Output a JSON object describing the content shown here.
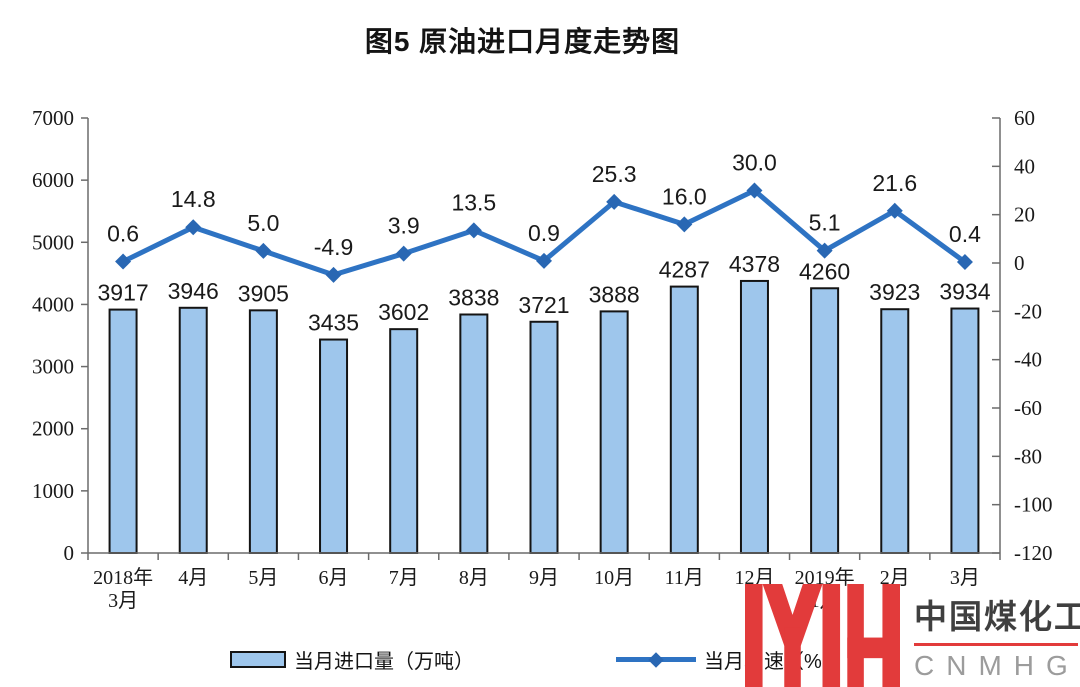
{
  "chart_data": {
    "type": "bar+line-combo",
    "title": "图5 原油进口月度走势图",
    "categories": [
      {
        "line1": "2018年",
        "line2": "3月"
      },
      {
        "line1": "4月"
      },
      {
        "line1": "5月"
      },
      {
        "line1": "6月"
      },
      {
        "line1": "7月"
      },
      {
        "line1": "8月"
      },
      {
        "line1": "9月"
      },
      {
        "line1": "10月"
      },
      {
        "line1": "11月"
      },
      {
        "line1": "12月"
      },
      {
        "line1": "2019年",
        "line2": "1月"
      },
      {
        "line1": "2月"
      },
      {
        "line1": "3月"
      }
    ],
    "series": [
      {
        "name": "当月进口量（万吨）",
        "type": "bar",
        "axis": "left",
        "values": [
          3917,
          3946,
          3905,
          3435,
          3602,
          3838,
          3721,
          3888,
          4287,
          4378,
          4260,
          3923,
          3934
        ],
        "labels": [
          "3917",
          "3946",
          "3905",
          "3435",
          "3602",
          "3838",
          "3721",
          "3888",
          "4287",
          "4378",
          "4260",
          "3923",
          "3934"
        ]
      },
      {
        "name": "当月增速（%）",
        "type": "line",
        "axis": "right",
        "values": [
          0.6,
          14.8,
          5.0,
          -4.9,
          3.9,
          13.5,
          0.9,
          25.3,
          16.0,
          30.0,
          5.1,
          21.6,
          0.4
        ],
        "labels": [
          "0.6",
          "14.8",
          "5.0",
          "-4.9",
          "3.9",
          "13.5",
          "0.9",
          "25.3",
          "16.0",
          "30.0",
          "5.1",
          "21.6",
          "0.4"
        ]
      }
    ],
    "left_axis": {
      "min": 0,
      "max": 7000,
      "tick_labels": [
        "0",
        "1000",
        "2000",
        "3000",
        "4000",
        "5000",
        "6000",
        "7000"
      ]
    },
    "right_axis": {
      "min": -120,
      "max": 60,
      "tick_labels": [
        "-120",
        "-100",
        "-80",
        "-60",
        "-40",
        "-20",
        "0",
        "20",
        "40",
        "60"
      ]
    },
    "grid": false,
    "legend_position": "bottom",
    "colors": {
      "bar_fill": "#9EC6EC",
      "bar_border": "#141414",
      "line": "#2E73C3",
      "marker": "#2967B3",
      "text": "#1A1A1A",
      "axis": "#6B6B6B"
    }
  },
  "watermark": {
    "logo": "MYH",
    "name_cn": "中国煤化工",
    "name_en": "CNMHG",
    "logo_color": "#E23B3B",
    "divider_color": "#E23B3B",
    "name_color": "#3F3F3F",
    "en_color": "#9C9C9C"
  }
}
